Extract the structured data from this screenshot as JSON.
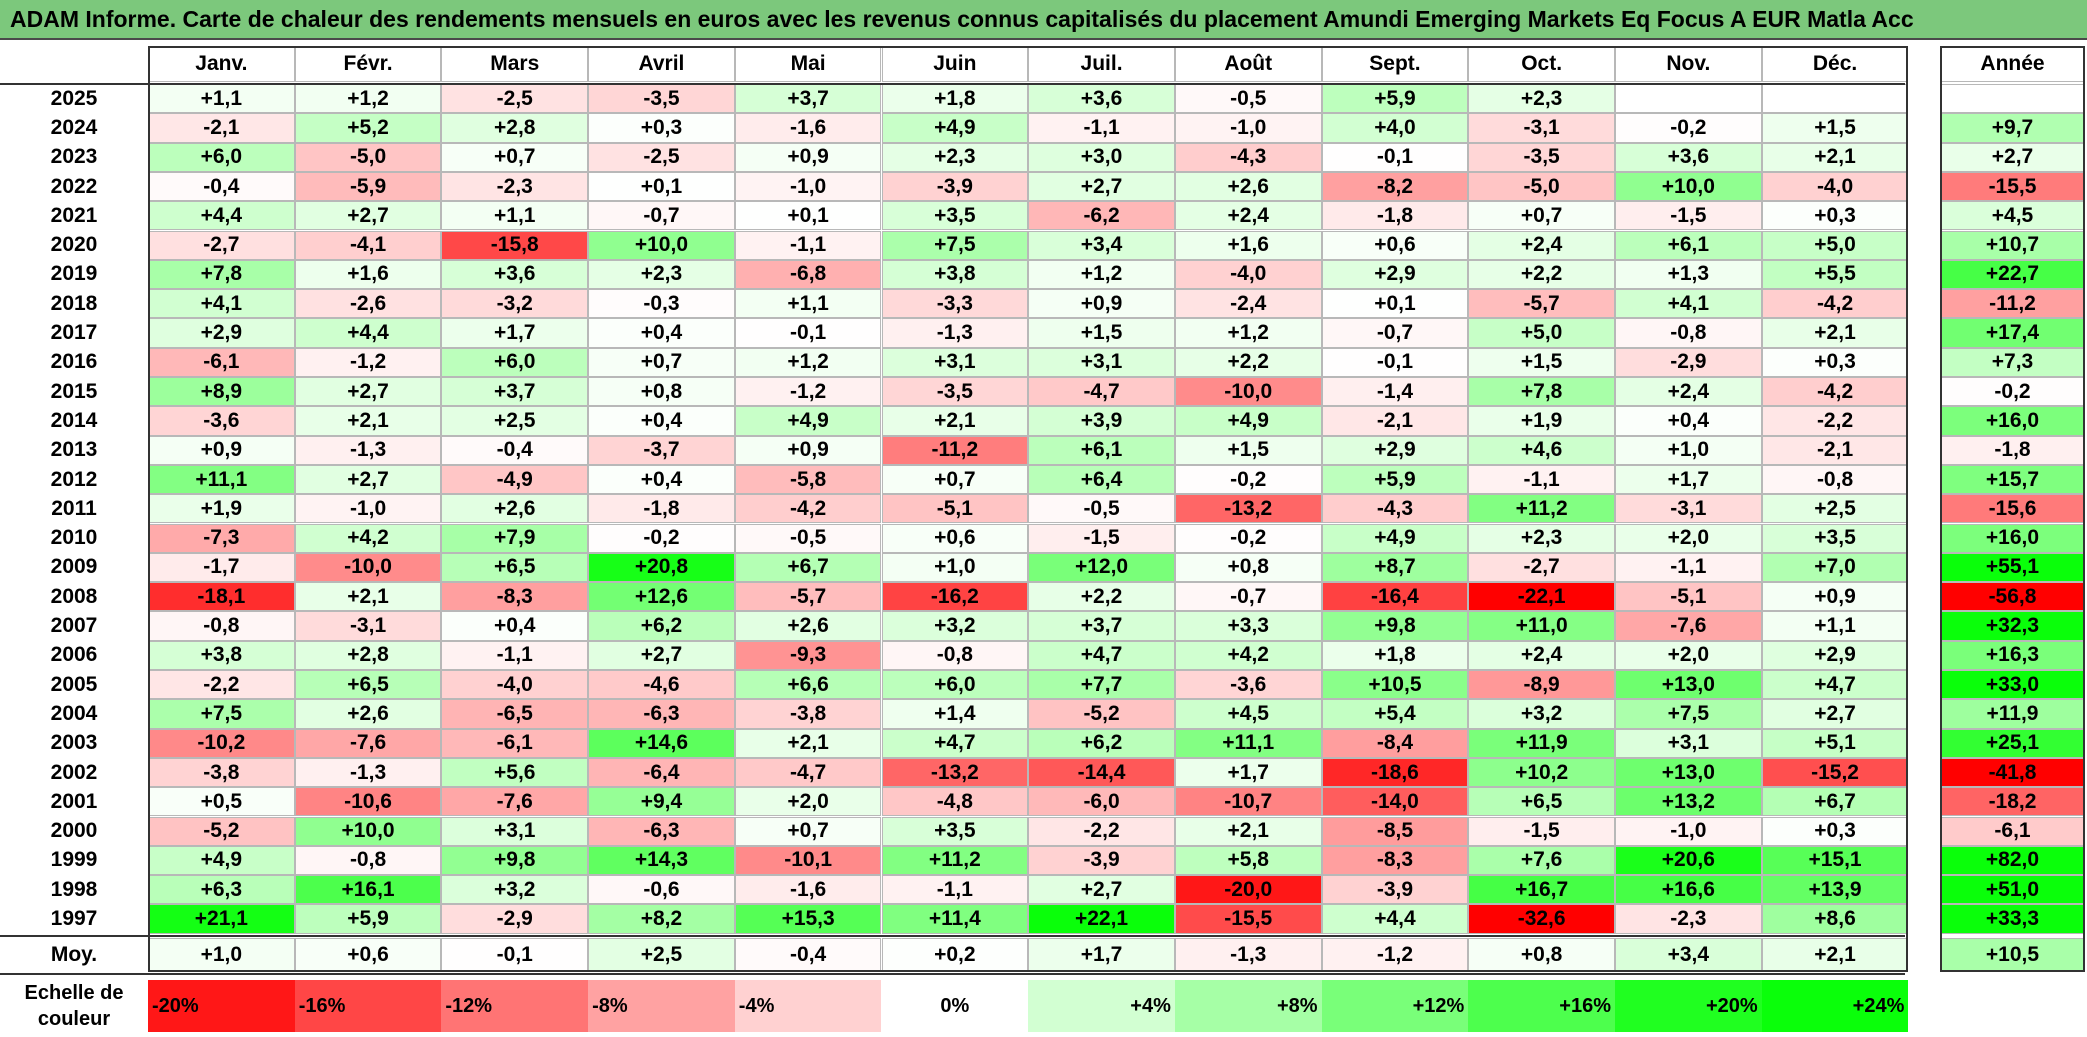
{
  "title": "ADAM Informe. Carte de chaleur des rendements mensuels en euros avec les revenus connus capitalisés du placement Amundi Emerging Markets Eq Focus A EUR Matla Acc",
  "chart_data": {
    "type": "heatmap",
    "title": "ADAM Informe. Carte de chaleur des rendements mensuels en euros avec les revenus connus capitalisés du placement Amundi Emerging Markets Eq Focus A EUR Matla Acc",
    "columns": [
      "Janv.",
      "Févr.",
      "Mars",
      "Avril",
      "Mai",
      "Juin",
      "Juil.",
      "Août",
      "Sept.",
      "Oct.",
      "Nov.",
      "Déc."
    ],
    "year_column_label": "Année",
    "average_label": "Moy.",
    "rows": [
      {
        "year": "2025",
        "values": [
          "+1,1",
          "+1,2",
          "-2,5",
          "-3,5",
          "+3,7",
          "+1,8",
          "+3,6",
          "-0,5",
          "+5,9",
          "+2,3",
          "",
          ""
        ],
        "annual": ""
      },
      {
        "year": "2024",
        "values": [
          "-2,1",
          "+5,2",
          "+2,8",
          "+0,3",
          "-1,6",
          "+4,9",
          "-1,1",
          "-1,0",
          "+4,0",
          "-3,1",
          "-0,2",
          "+1,5"
        ],
        "annual": "+9,7"
      },
      {
        "year": "2023",
        "values": [
          "+6,0",
          "-5,0",
          "+0,7",
          "-2,5",
          "+0,9",
          "+2,3",
          "+3,0",
          "-4,3",
          "-0,1",
          "-3,5",
          "+3,6",
          "+2,1"
        ],
        "annual": "+2,7"
      },
      {
        "year": "2022",
        "values": [
          "-0,4",
          "-5,9",
          "-2,3",
          "+0,1",
          "-1,0",
          "-3,9",
          "+2,7",
          "+2,6",
          "-8,2",
          "-5,0",
          "+10,0",
          "-4,0"
        ],
        "annual": "-15,5"
      },
      {
        "year": "2021",
        "values": [
          "+4,4",
          "+2,7",
          "+1,1",
          "-0,7",
          "+0,1",
          "+3,5",
          "-6,2",
          "+2,4",
          "-1,8",
          "+0,7",
          "-1,5",
          "+0,3"
        ],
        "annual": "+4,5"
      },
      {
        "year": "2020",
        "values": [
          "-2,7",
          "-4,1",
          "-15,8",
          "+10,0",
          "-1,1",
          "+7,5",
          "+3,4",
          "+1,6",
          "+0,6",
          "+2,4",
          "+6,1",
          "+5,0"
        ],
        "annual": "+10,7"
      },
      {
        "year": "2019",
        "values": [
          "+7,8",
          "+1,6",
          "+3,6",
          "+2,3",
          "-6,8",
          "+3,8",
          "+1,2",
          "-4,0",
          "+2,9",
          "+2,2",
          "+1,3",
          "+5,5"
        ],
        "annual": "+22,7"
      },
      {
        "year": "2018",
        "values": [
          "+4,1",
          "-2,6",
          "-3,2",
          "-0,3",
          "+1,1",
          "-3,3",
          "+0,9",
          "-2,4",
          "+0,1",
          "-5,7",
          "+4,1",
          "-4,2"
        ],
        "annual": "-11,2"
      },
      {
        "year": "2017",
        "values": [
          "+2,9",
          "+4,4",
          "+1,7",
          "+0,4",
          "-0,1",
          "-1,3",
          "+1,5",
          "+1,2",
          "-0,7",
          "+5,0",
          "-0,8",
          "+2,1"
        ],
        "annual": "+17,4"
      },
      {
        "year": "2016",
        "values": [
          "-6,1",
          "-1,2",
          "+6,0",
          "+0,7",
          "+1,2",
          "+3,1",
          "+3,1",
          "+2,2",
          "-0,1",
          "+1,5",
          "-2,9",
          "+0,3"
        ],
        "annual": "+7,3"
      },
      {
        "year": "2015",
        "values": [
          "+8,9",
          "+2,7",
          "+3,7",
          "+0,8",
          "-1,2",
          "-3,5",
          "-4,7",
          "-10,0",
          "-1,4",
          "+7,8",
          "+2,4",
          "-4,2"
        ],
        "annual": "-0,2"
      },
      {
        "year": "2014",
        "values": [
          "-3,6",
          "+2,1",
          "+2,5",
          "+0,4",
          "+4,9",
          "+2,1",
          "+3,9",
          "+4,9",
          "-2,1",
          "+1,9",
          "+0,4",
          "-2,2"
        ],
        "annual": "+16,0"
      },
      {
        "year": "2013",
        "values": [
          "+0,9",
          "-1,3",
          "-0,4",
          "-3,7",
          "+0,9",
          "-11,2",
          "+6,1",
          "+1,5",
          "+2,9",
          "+4,6",
          "+1,0",
          "-2,1"
        ],
        "annual": "-1,8"
      },
      {
        "year": "2012",
        "values": [
          "+11,1",
          "+2,7",
          "-4,9",
          "+0,4",
          "-5,8",
          "+0,7",
          "+6,4",
          "-0,2",
          "+5,9",
          "-1,1",
          "+1,7",
          "-0,8"
        ],
        "annual": "+15,7"
      },
      {
        "year": "2011",
        "values": [
          "+1,9",
          "-1,0",
          "+2,6",
          "-1,8",
          "-4,2",
          "-5,1",
          "-0,5",
          "-13,2",
          "-4,3",
          "+11,2",
          "-3,1",
          "+2,5"
        ],
        "annual": "-15,6"
      },
      {
        "year": "2010",
        "values": [
          "-7,3",
          "+4,2",
          "+7,9",
          "-0,2",
          "-0,5",
          "+0,6",
          "-1,5",
          "-0,2",
          "+4,9",
          "+2,3",
          "+2,0",
          "+3,5"
        ],
        "annual": "+16,0"
      },
      {
        "year": "2009",
        "values": [
          "-1,7",
          "-10,0",
          "+6,5",
          "+20,8",
          "+6,7",
          "+1,0",
          "+12,0",
          "+0,8",
          "+8,7",
          "-2,7",
          "-1,1",
          "+7,0"
        ],
        "annual": "+55,1"
      },
      {
        "year": "2008",
        "values": [
          "-18,1",
          "+2,1",
          "-8,3",
          "+12,6",
          "-5,7",
          "-16,2",
          "+2,2",
          "-0,7",
          "-16,4",
          "-22,1",
          "-5,1",
          "+0,9"
        ],
        "annual": "-56,8"
      },
      {
        "year": "2007",
        "values": [
          "-0,8",
          "-3,1",
          "+0,4",
          "+6,2",
          "+2,6",
          "+3,2",
          "+3,7",
          "+3,3",
          "+9,8",
          "+11,0",
          "-7,6",
          "+1,1"
        ],
        "annual": "+32,3"
      },
      {
        "year": "2006",
        "values": [
          "+3,8",
          "+2,8",
          "-1,1",
          "+2,7",
          "-9,3",
          "-0,8",
          "+4,7",
          "+4,2",
          "+1,8",
          "+2,4",
          "+2,0",
          "+2,9"
        ],
        "annual": "+16,3"
      },
      {
        "year": "2005",
        "values": [
          "-2,2",
          "+6,5",
          "-4,0",
          "-4,6",
          "+6,6",
          "+6,0",
          "+7,7",
          "-3,6",
          "+10,5",
          "-8,9",
          "+13,0",
          "+4,7"
        ],
        "annual": "+33,0"
      },
      {
        "year": "2004",
        "values": [
          "+7,5",
          "+2,6",
          "-6,5",
          "-6,3",
          "-3,8",
          "+1,4",
          "-5,2",
          "+4,5",
          "+5,4",
          "+3,2",
          "+7,5",
          "+2,7"
        ],
        "annual": "+11,9"
      },
      {
        "year": "2003",
        "values": [
          "-10,2",
          "-7,6",
          "-6,1",
          "+14,6",
          "+2,1",
          "+4,7",
          "+6,2",
          "+11,1",
          "-8,4",
          "+11,9",
          "+3,1",
          "+5,1"
        ],
        "annual": "+25,1"
      },
      {
        "year": "2002",
        "values": [
          "-3,8",
          "-1,3",
          "+5,6",
          "-6,4",
          "-4,7",
          "-13,2",
          "-14,4",
          "+1,7",
          "-18,6",
          "+10,2",
          "+13,0",
          "-15,2"
        ],
        "annual": "-41,8"
      },
      {
        "year": "2001",
        "values": [
          "+0,5",
          "-10,6",
          "-7,6",
          "+9,4",
          "+2,0",
          "-4,8",
          "-6,0",
          "-10,7",
          "-14,0",
          "+6,5",
          "+13,2",
          "+6,7"
        ],
        "annual": "-18,2"
      },
      {
        "year": "2000",
        "values": [
          "-5,2",
          "+10,0",
          "+3,1",
          "-6,3",
          "+0,7",
          "+3,5",
          "-2,2",
          "+2,1",
          "-8,5",
          "-1,5",
          "-1,0",
          "+0,3"
        ],
        "annual": "-6,1"
      },
      {
        "year": "1999",
        "values": [
          "+4,9",
          "-0,8",
          "+9,8",
          "+14,3",
          "-10,1",
          "+11,2",
          "-3,9",
          "+5,8",
          "-8,3",
          "+7,6",
          "+20,6",
          "+15,1"
        ],
        "annual": "+82,0"
      },
      {
        "year": "1998",
        "values": [
          "+6,3",
          "+16,1",
          "+3,2",
          "-0,6",
          "-1,6",
          "-1,1",
          "+2,7",
          "-20,0",
          "-3,9",
          "+16,7",
          "+16,6",
          "+13,9"
        ],
        "annual": "+51,0"
      },
      {
        "year": "1997",
        "values": [
          "+21,1",
          "+5,9",
          "-2,9",
          "+8,2",
          "+15,3",
          "+11,4",
          "+22,1",
          "-15,5",
          "+4,4",
          "-32,6",
          "-2,3",
          "+8,6"
        ],
        "annual": "+33,3"
      }
    ],
    "averages": [
      "+1,0",
      "+0,6",
      "-0,1",
      "+2,5",
      "-0,4",
      "+0,2",
      "+1,7",
      "-1,3",
      "-1,2",
      "+0,8",
      "+3,4",
      "+2,1"
    ],
    "average_annual": "+10,5",
    "color_scale": {
      "label": "Echelle de couleur",
      "stops": [
        "-20%",
        "-16%",
        "-12%",
        "-8%",
        "-4%",
        "0%",
        "+4%",
        "+8%",
        "+12%",
        "+16%",
        "+20%",
        "+24%"
      ],
      "negative_color": "#ff0000",
      "neutral_color": "#ffffff",
      "positive_color": "#00ff00"
    },
    "colors": {
      "title_bar": "#7cc87c"
    }
  }
}
